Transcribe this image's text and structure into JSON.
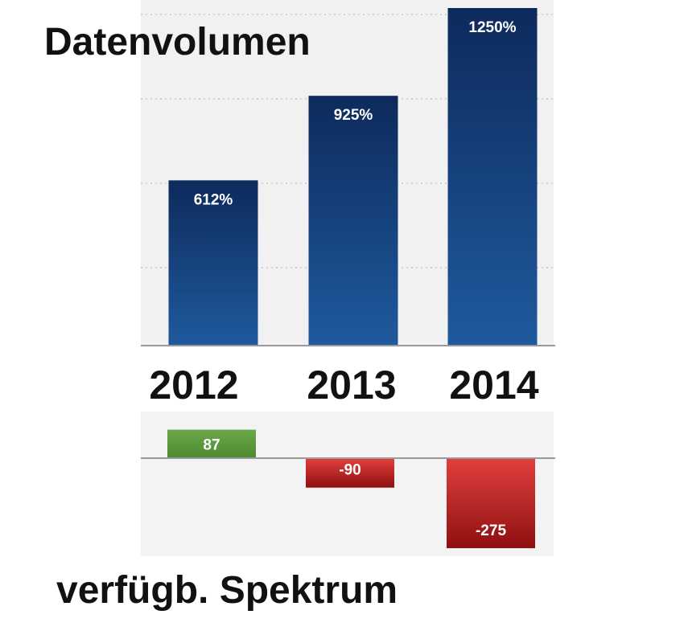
{
  "chart_data": [
    {
      "type": "bar",
      "title": "Datenvolumen",
      "categories": [
        "2012",
        "2013",
        "2014"
      ],
      "values": [
        612,
        925,
        1250
      ],
      "value_labels": [
        "612%",
        "925%",
        "1250%"
      ],
      "ylim": [
        0,
        1250
      ],
      "grid": true,
      "colors": {
        "bar_top": "#0d2a5c",
        "bar_bottom": "#1f5a9e"
      }
    },
    {
      "type": "bar",
      "title": "verfügb. Spektrum",
      "categories": [
        "2012",
        "2013",
        "2014"
      ],
      "values": [
        87,
        -90,
        -275
      ],
      "value_labels": [
        "87",
        "-90",
        "-275"
      ],
      "ylim": [
        -275,
        87
      ],
      "grid": false,
      "colors": {
        "positive": "#5a9a3c",
        "negative_light": "#e0403d",
        "negative_dark": "#8e1010"
      }
    }
  ]
}
